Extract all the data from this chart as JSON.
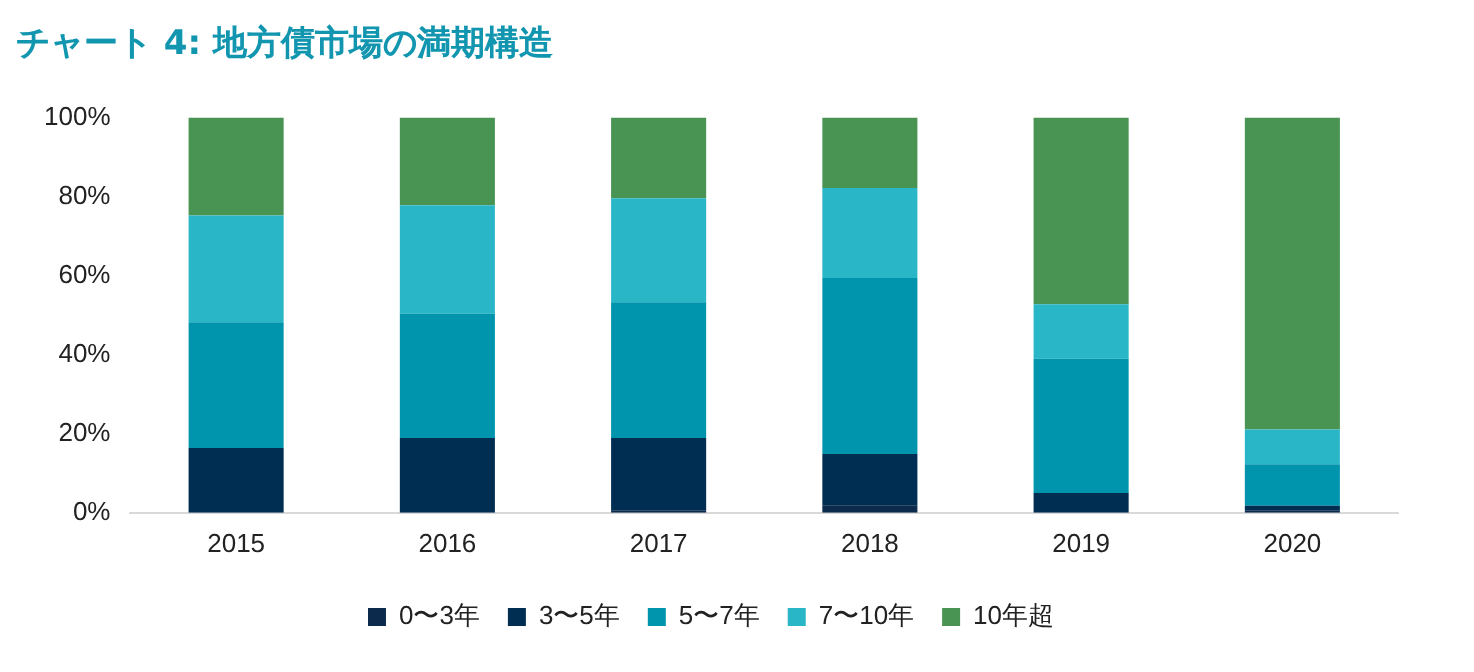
{
  "chart_data": {
    "type": "bar",
    "title": "チャート 4: 地方債市場の満期構造",
    "categories": [
      "2015",
      "2016",
      "2017",
      "2018",
      "2019",
      "2020"
    ],
    "stacked": true,
    "ylim": [
      0,
      100
    ],
    "yticks": [
      {
        "value": 0,
        "label": "0%"
      },
      {
        "value": 20,
        "label": "20%"
      },
      {
        "value": 40,
        "label": "40%"
      },
      {
        "value": 60,
        "label": "60%"
      },
      {
        "value": 80,
        "label": "80%"
      },
      {
        "value": 100,
        "label": "100%"
      }
    ],
    "grid": false,
    "legend": "bottom",
    "series": [
      {
        "name": "0〜3年",
        "color": "#0b2a4c",
        "values": [
          0,
          0,
          0.5,
          1.8,
          0,
          0.5
        ]
      },
      {
        "name": "3〜5年",
        "color": "#002d52",
        "values": [
          16.4,
          18.9,
          18.4,
          13.1,
          5.0,
          1.3
        ]
      },
      {
        "name": "5〜7年",
        "color": "#0095ad",
        "values": [
          31.8,
          31.5,
          34.4,
          44.5,
          34.0,
          10.5
        ]
      },
      {
        "name": "7〜10年",
        "color": "#29b7c8",
        "values": [
          27.0,
          27.4,
          26.3,
          22.8,
          13.8,
          8.8
        ]
      },
      {
        "name": "10年超",
        "color": "#4a9453",
        "values": [
          24.8,
          22.2,
          20.4,
          17.8,
          47.2,
          78.9
        ]
      }
    ]
  }
}
